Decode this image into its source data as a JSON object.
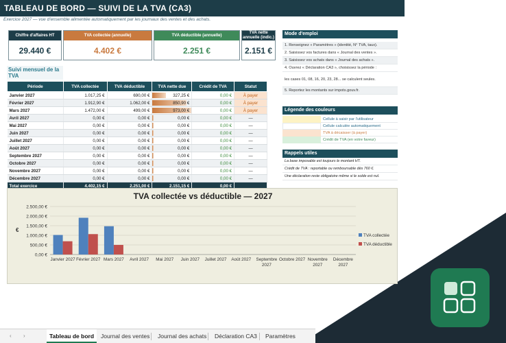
{
  "title": "TABLEAU DE BORD — SUIVI DE LA TVA  (CA3)",
  "subtitle": "Exercice 2027 — vue d'ensemble alimentée automatiquement par les journaux des ventes et des achats.",
  "kpis": [
    {
      "label": "Chiffre d'affaires HT",
      "value": "29.440 €",
      "head_color": "#1d3d48",
      "value_color": "#1d3d48"
    },
    {
      "label": "TVA collectée (annuelle)",
      "value": "4.402 €",
      "head_color": "#c97a3f",
      "value_color": "#c97a3f"
    },
    {
      "label": "TVA déductible (annuelle)",
      "value": "2.251 €",
      "head_color": "#3f8a5a",
      "value_color": "#3f8a5a"
    },
    {
      "label": "TVA nette annuelle (indic.)",
      "value": "2.151 €",
      "head_color": "#1d3d48",
      "value_color": "#1d3d48"
    }
  ],
  "monthly": {
    "section_title": "Suivi mensuel de la TVA",
    "headers": [
      "Période",
      "TVA collectée",
      "TVA déductible",
      "TVA nette due",
      "Crédit de TVA",
      "Statut"
    ],
    "rows": [
      {
        "period": "Janvier 2027",
        "collected": "1.017,25 €",
        "deductible": "690,00 €",
        "net": "327,25 €",
        "net_ratio": 0.34,
        "credit": "0,00 €",
        "status": "À payer"
      },
      {
        "period": "Février 2027",
        "collected": "1.912,90 €",
        "deductible": "1.062,00 €",
        "net": "850,90 €",
        "net_ratio": 0.87,
        "credit": "0,00 €",
        "status": "À payer"
      },
      {
        "period": "Mars 2027",
        "collected": "1.472,00 €",
        "deductible": "499,00 €",
        "net": "973,00 €",
        "net_ratio": 1.0,
        "credit": "0,00 €",
        "status": "À payer"
      },
      {
        "period": "Avril 2027",
        "collected": "0,00 €",
        "deductible": "0,00 €",
        "net": "0,00 €",
        "net_ratio": 0.02,
        "credit": "0,00 €",
        "status": "—"
      },
      {
        "period": "Mai 2027",
        "collected": "0,00 €",
        "deductible": "0,00 €",
        "net": "0,00 €",
        "net_ratio": 0.02,
        "credit": "0,00 €",
        "status": "—"
      },
      {
        "period": "Juin 2027",
        "collected": "0,00 €",
        "deductible": "0,00 €",
        "net": "0,00 €",
        "net_ratio": 0.02,
        "credit": "0,00 €",
        "status": "—"
      },
      {
        "period": "Juillet 2027",
        "collected": "0,00 €",
        "deductible": "0,00 €",
        "net": "0,00 €",
        "net_ratio": 0.02,
        "credit": "0,00 €",
        "status": "—"
      },
      {
        "period": "Août 2027",
        "collected": "0,00 €",
        "deductible": "0,00 €",
        "net": "0,00 €",
        "net_ratio": 0.02,
        "credit": "0,00 €",
        "status": "—"
      },
      {
        "period": "Septembre 2027",
        "collected": "0,00 €",
        "deductible": "0,00 €",
        "net": "0,00 €",
        "net_ratio": 0.02,
        "credit": "0,00 €",
        "status": "—"
      },
      {
        "period": "Octobre 2027",
        "collected": "0,00 €",
        "deductible": "0,00 €",
        "net": "0,00 €",
        "net_ratio": 0.02,
        "credit": "0,00 €",
        "status": "—"
      },
      {
        "period": "Novembre 2027",
        "collected": "0,00 €",
        "deductible": "0,00 €",
        "net": "0,00 €",
        "net_ratio": 0.02,
        "credit": "0,00 €",
        "status": "—"
      },
      {
        "period": "Décembre 2027",
        "collected": "0,00 €",
        "deductible": "0,00 €",
        "net": "0,00 €",
        "net_ratio": 0.02,
        "credit": "0,00 €",
        "status": "—"
      }
    ],
    "total": {
      "period": "Total exercice",
      "collected": "4.402,15 €",
      "deductible": "2.251,00 €",
      "net": "2.151,15 €",
      "credit": "0,00 €",
      "status": ""
    }
  },
  "mode_emploi": {
    "title": "Mode d'emploi",
    "steps": [
      "1. Renseignez « Paramètres » (identité, N° TVA, taux).",
      "2. Saisissez vos factures dans « Journal des ventes ».",
      "3. Saisissez vos achats dans « Journal des achats ».",
      "4. Ouvrez « Déclaration CA3 », choisissez la période :",
      "   les cases 01, 08, 16, 20, 23, 28... se calculent seules.",
      "5. Reportez les montants sur impots.gouv.fr."
    ]
  },
  "legend": {
    "title": "Légende des couleurs",
    "items": [
      {
        "color": "#fdf3c4",
        "text": "Cellule à saisir par l'utilisateur"
      },
      {
        "color": "#ffffff",
        "text": "Cellule calculée automatiquement"
      },
      {
        "color": "#fbe3cf",
        "text": "TVA à décaisser (à payer)"
      },
      {
        "color": "#d9f0dc",
        "text": "Crédit de TVA (en votre faveur)"
      }
    ]
  },
  "reminders": {
    "title": "Rappels utiles",
    "items": [
      "La base imposable est toujours le montant HT.",
      "Crédit de TVA : reportable ou remboursable dès 760 €.",
      "Une déclaration reste obligatoire même si le solde est nul."
    ]
  },
  "chart_data": {
    "type": "bar",
    "title": "TVA collectée vs déductible — 2027",
    "ylabel": "€",
    "ylim": [
      0,
      2500
    ],
    "yticks": [
      "0,00 €",
      "500,00 €",
      "1.000,00 €",
      "1.500,00 €",
      "2.000,00 €",
      "2.500,00 €"
    ],
    "categories": [
      "Janvier 2027",
      "Février 2027",
      "Mars 2027",
      "Avril 2027",
      "Mai 2027",
      "Juin 2027",
      "Juillet 2027",
      "Août 2027",
      "Septembre 2027",
      "Octobre 2027",
      "Novembre 2027",
      "Décembre 2027"
    ],
    "series": [
      {
        "name": "TVA collectée",
        "color": "#4f81bd",
        "values": [
          1017.25,
          1912.9,
          1472,
          0,
          0,
          0,
          0,
          0,
          0,
          0,
          0,
          0
        ]
      },
      {
        "name": "TVA déductible",
        "color": "#c0504d",
        "values": [
          690,
          1062,
          499,
          0,
          0,
          0,
          0,
          0,
          0,
          0,
          0,
          0
        ]
      }
    ],
    "legend_position": "right"
  },
  "tabs": [
    {
      "label": "Tableau de bord",
      "active": true
    },
    {
      "label": "Journal des ventes",
      "active": false
    },
    {
      "label": "Journal des achats",
      "active": false
    },
    {
      "label": "Déclaration CA3",
      "active": false
    },
    {
      "label": "Paramètres",
      "active": false
    }
  ],
  "tab_nav": {
    "prev": "‹",
    "next": "›"
  },
  "colors": {
    "header_dark": "#1d3d48",
    "table_head": "#1d4f5c",
    "accent_green": "#1f7a52",
    "pay_orange": "#c0621a"
  }
}
